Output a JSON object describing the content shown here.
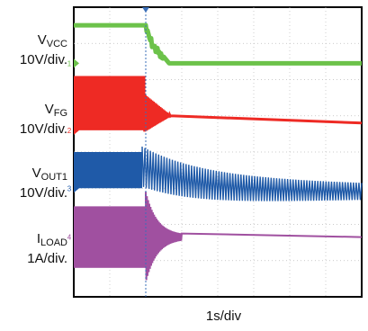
{
  "chart_data": {
    "type": "line",
    "title": "",
    "x_scale_label": "1s/div",
    "divisions": {
      "x": 8,
      "y": 8
    },
    "grid": true,
    "trigger_division": 2.0,
    "channels": [
      {
        "name": "V",
        "sub": "VCC",
        "scale": "10V/div.",
        "marker": "1",
        "color": "#6cc24a",
        "level_before_div": 0.5,
        "level_after_div": 1.55,
        "transition_start_div": 2.0,
        "transition_end_div": 2.5,
        "noise_div": 0.12
      },
      {
        "name": "V",
        "sub": "FG",
        "scale": "10V/div.",
        "marker": "2",
        "color": "#ee2a24",
        "band_top_div": 1.9,
        "band_bottom_div": 3.4,
        "level_after_div": 3.2,
        "transition_start_div": 1.95,
        "transition_end_div": 2.7
      },
      {
        "name": "V",
        "sub": "OUT1",
        "scale": "10V/div.",
        "marker": "3",
        "color": "#1f5aa8",
        "band_top_div": 4.0,
        "band_bottom_div": 5.0,
        "level_after_div": 5.1,
        "transition_start_div": 1.9,
        "transition_end_div": 8.0
      },
      {
        "name": "I",
        "sub": "LOAD",
        "scale": "1A/div.",
        "marker": "4",
        "color": "#a050a0",
        "band_top_div": 5.5,
        "band_bottom_div": 7.2,
        "level_after_div": 6.35,
        "transition_start_div": 2.0,
        "transition_end_div": 3.0
      }
    ]
  }
}
